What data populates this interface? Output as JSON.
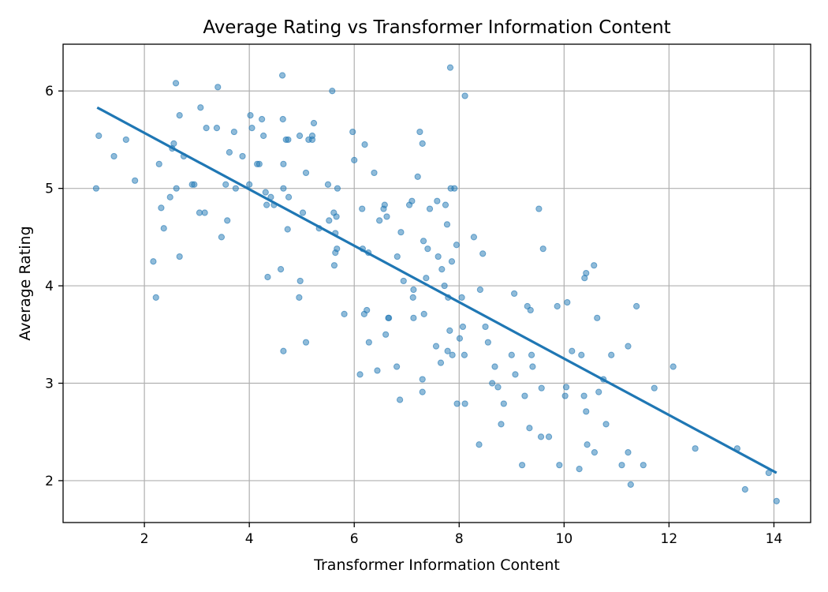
{
  "chart_data": {
    "type": "scatter",
    "title": "Average Rating vs Transformer Information Content",
    "xlabel": "Transformer Information Content",
    "ylabel": "Average Rating",
    "xlim": [
      0.45,
      14.7
    ],
    "ylim": [
      1.57,
      6.48
    ],
    "xticks": [
      2,
      4,
      6,
      8,
      10,
      12,
      14
    ],
    "yticks": [
      2,
      3,
      4,
      5,
      6
    ],
    "xtick_labels": [
      "2",
      "4",
      "6",
      "8",
      "10",
      "12",
      "14"
    ],
    "ytick_labels": [
      "2",
      "3",
      "4",
      "5",
      "6"
    ],
    "grid": true,
    "colors": {
      "points": "#1f77b4",
      "trend": "#1f77b4"
    },
    "trend_line": {
      "x": [
        1.1,
        14.05
      ],
      "y": [
        5.83,
        2.08
      ]
    },
    "points": [
      [
        1.08,
        5.0
      ],
      [
        1.13,
        5.54
      ],
      [
        1.42,
        5.33
      ],
      [
        1.65,
        5.5
      ],
      [
        1.82,
        5.08
      ],
      [
        2.17,
        4.25
      ],
      [
        2.22,
        3.88
      ],
      [
        2.28,
        5.25
      ],
      [
        2.32,
        4.8
      ],
      [
        2.37,
        4.59
      ],
      [
        2.49,
        4.91
      ],
      [
        2.53,
        5.41
      ],
      [
        2.56,
        5.46
      ],
      [
        2.6,
        6.08
      ],
      [
        2.61,
        5.0
      ],
      [
        2.67,
        5.75
      ],
      [
        2.67,
        4.3
      ],
      [
        2.75,
        5.33
      ],
      [
        2.91,
        5.04
      ],
      [
        2.95,
        5.04
      ],
      [
        3.05,
        4.75
      ],
      [
        3.07,
        5.83
      ],
      [
        3.15,
        4.75
      ],
      [
        3.18,
        5.62
      ],
      [
        3.38,
        5.62
      ],
      [
        3.4,
        6.04
      ],
      [
        3.47,
        4.5
      ],
      [
        3.55,
        5.04
      ],
      [
        3.58,
        4.67
      ],
      [
        3.62,
        5.37
      ],
      [
        3.71,
        5.58
      ],
      [
        3.74,
        5.0
      ],
      [
        3.87,
        5.33
      ],
      [
        4.0,
        5.04
      ],
      [
        4.02,
        5.75
      ],
      [
        4.05,
        5.62
      ],
      [
        4.15,
        5.25
      ],
      [
        4.19,
        5.25
      ],
      [
        4.24,
        5.71
      ],
      [
        4.27,
        5.54
      ],
      [
        4.31,
        4.96
      ],
      [
        4.33,
        4.83
      ],
      [
        4.35,
        4.09
      ],
      [
        4.41,
        4.91
      ],
      [
        4.47,
        4.83
      ],
      [
        4.6,
        4.17
      ],
      [
        4.63,
        6.16
      ],
      [
        4.64,
        5.71
      ],
      [
        4.65,
        5.25
      ],
      [
        4.65,
        5.0
      ],
      [
        4.65,
        3.33
      ],
      [
        4.7,
        5.5
      ],
      [
        4.73,
        4.58
      ],
      [
        4.74,
        5.5
      ],
      [
        4.75,
        4.91
      ],
      [
        4.95,
        3.88
      ],
      [
        4.96,
        5.54
      ],
      [
        4.97,
        4.05
      ],
      [
        5.02,
        4.75
      ],
      [
        5.08,
        5.16
      ],
      [
        5.08,
        3.42
      ],
      [
        5.13,
        5.5
      ],
      [
        5.2,
        5.54
      ],
      [
        5.2,
        5.5
      ],
      [
        5.23,
        5.67
      ],
      [
        5.33,
        4.59
      ],
      [
        5.5,
        5.04
      ],
      [
        5.52,
        4.67
      ],
      [
        5.58,
        6.0
      ],
      [
        5.61,
        4.75
      ],
      [
        5.62,
        4.21
      ],
      [
        5.64,
        4.54
      ],
      [
        5.64,
        4.34
      ],
      [
        5.66,
        4.71
      ],
      [
        5.67,
        4.38
      ],
      [
        5.68,
        5.0
      ],
      [
        5.81,
        3.71
      ],
      [
        5.97,
        5.58
      ],
      [
        6.0,
        5.29
      ],
      [
        6.11,
        3.09
      ],
      [
        6.15,
        4.79
      ],
      [
        6.16,
        4.38
      ],
      [
        6.19,
        3.71
      ],
      [
        6.2,
        5.45
      ],
      [
        6.24,
        3.75
      ],
      [
        6.27,
        4.34
      ],
      [
        6.28,
        3.42
      ],
      [
        6.38,
        5.16
      ],
      [
        6.44,
        3.13
      ],
      [
        6.48,
        4.67
      ],
      [
        6.56,
        4.79
      ],
      [
        6.58,
        4.83
      ],
      [
        6.6,
        3.5
      ],
      [
        6.62,
        4.71
      ],
      [
        6.65,
        3.67
      ],
      [
        6.66,
        3.67
      ],
      [
        6.81,
        3.17
      ],
      [
        6.82,
        4.3
      ],
      [
        6.87,
        2.83
      ],
      [
        6.89,
        4.55
      ],
      [
        6.94,
        4.05
      ],
      [
        7.05,
        4.83
      ],
      [
        7.1,
        4.87
      ],
      [
        7.12,
        3.88
      ],
      [
        7.13,
        3.96
      ],
      [
        7.13,
        3.67
      ],
      [
        7.21,
        5.12
      ],
      [
        7.25,
        5.58
      ],
      [
        7.3,
        5.46
      ],
      [
        7.3,
        3.04
      ],
      [
        7.3,
        2.91
      ],
      [
        7.32,
        4.46
      ],
      [
        7.33,
        3.71
      ],
      [
        7.37,
        4.08
      ],
      [
        7.4,
        4.38
      ],
      [
        7.44,
        4.79
      ],
      [
        7.56,
        3.38
      ],
      [
        7.58,
        4.87
      ],
      [
        7.6,
        4.3
      ],
      [
        7.65,
        3.21
      ],
      [
        7.67,
        4.17
      ],
      [
        7.72,
        4.0
      ],
      [
        7.74,
        4.83
      ],
      [
        7.77,
        4.63
      ],
      [
        7.78,
        3.33
      ],
      [
        7.79,
        3.88
      ],
      [
        7.82,
        3.54
      ],
      [
        7.83,
        6.24
      ],
      [
        7.84,
        5.0
      ],
      [
        7.86,
        4.25
      ],
      [
        7.87,
        3.29
      ],
      [
        7.91,
        5.0
      ],
      [
        7.95,
        4.42
      ],
      [
        7.96,
        2.79
      ],
      [
        8.01,
        3.46
      ],
      [
        8.05,
        3.88
      ],
      [
        8.07,
        3.58
      ],
      [
        8.1,
        3.29
      ],
      [
        8.11,
        2.79
      ],
      [
        8.11,
        5.95
      ],
      [
        8.28,
        4.5
      ],
      [
        8.38,
        2.37
      ],
      [
        8.4,
        3.96
      ],
      [
        8.45,
        4.33
      ],
      [
        8.5,
        3.58
      ],
      [
        8.55,
        3.42
      ],
      [
        8.63,
        3.0
      ],
      [
        8.68,
        3.17
      ],
      [
        8.74,
        2.96
      ],
      [
        8.8,
        2.58
      ],
      [
        8.85,
        2.79
      ],
      [
        9.0,
        3.29
      ],
      [
        9.05,
        3.92
      ],
      [
        9.07,
        3.09
      ],
      [
        9.2,
        2.16
      ],
      [
        9.25,
        2.87
      ],
      [
        9.3,
        3.79
      ],
      [
        9.34,
        2.54
      ],
      [
        9.36,
        3.75
      ],
      [
        9.38,
        3.29
      ],
      [
        9.4,
        3.17
      ],
      [
        9.52,
        4.79
      ],
      [
        9.56,
        2.45
      ],
      [
        9.57,
        2.95
      ],
      [
        9.6,
        4.38
      ],
      [
        9.71,
        2.45
      ],
      [
        9.87,
        3.79
      ],
      [
        9.91,
        2.16
      ],
      [
        10.02,
        2.87
      ],
      [
        10.04,
        2.96
      ],
      [
        10.06,
        3.83
      ],
      [
        10.15,
        3.33
      ],
      [
        10.29,
        2.12
      ],
      [
        10.33,
        3.29
      ],
      [
        10.38,
        2.87
      ],
      [
        10.39,
        4.08
      ],
      [
        10.42,
        4.13
      ],
      [
        10.42,
        2.71
      ],
      [
        10.44,
        2.37
      ],
      [
        10.57,
        4.21
      ],
      [
        10.58,
        2.29
      ],
      [
        10.63,
        3.67
      ],
      [
        10.66,
        2.91
      ],
      [
        10.75,
        3.04
      ],
      [
        10.8,
        2.58
      ],
      [
        10.9,
        3.29
      ],
      [
        11.1,
        2.16
      ],
      [
        11.22,
        2.29
      ],
      [
        11.22,
        3.38
      ],
      [
        11.27,
        1.96
      ],
      [
        11.38,
        3.79
      ],
      [
        11.51,
        2.16
      ],
      [
        11.72,
        2.95
      ],
      [
        12.08,
        3.17
      ],
      [
        12.5,
        2.33
      ],
      [
        13.3,
        2.33
      ],
      [
        13.45,
        1.91
      ],
      [
        13.9,
        2.08
      ],
      [
        14.05,
        1.79
      ]
    ]
  }
}
